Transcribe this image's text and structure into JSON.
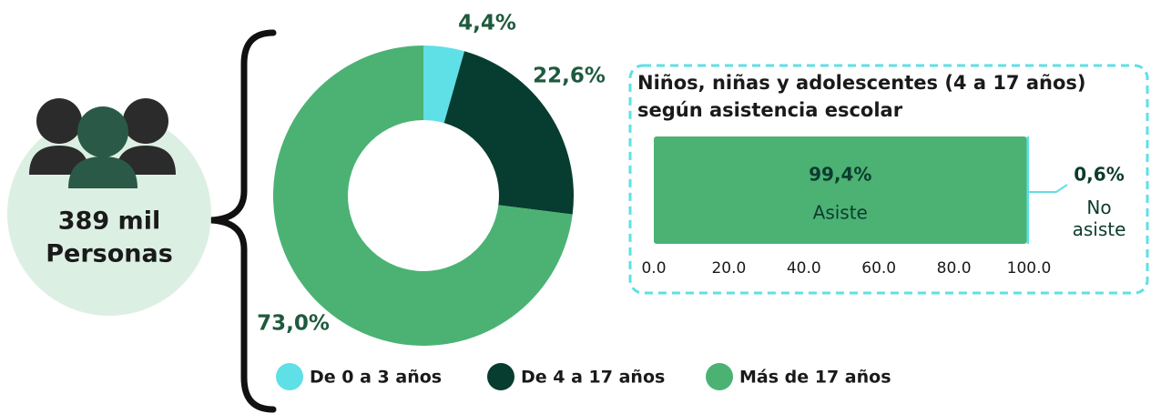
{
  "summary": {
    "value_text": "389 mil",
    "label": "Personas"
  },
  "chart_data": [
    {
      "type": "pie",
      "categories": [
        "De 0 a 3 años",
        "De 4 a 17 años",
        "Más de 17 años"
      ],
      "values": [
        4.4,
        22.6,
        73.0
      ],
      "value_labels": [
        "4,4%",
        "22,6%",
        "73,0%"
      ],
      "colors": [
        "#5ee0e6",
        "#073d30",
        "#4bb274"
      ]
    },
    {
      "type": "bar",
      "title": "Niños, niñas y adolescentes (4 a 17 años) según asistencia escolar",
      "orientation": "horizontal",
      "stacked": true,
      "series": [
        {
          "name": "Asiste",
          "color": "#4bb274",
          "values": [
            99.4
          ],
          "value_labels": [
            "99,4%"
          ]
        },
        {
          "name": "No asiste",
          "color": "#5ee0e6",
          "values": [
            0.6
          ],
          "value_labels": [
            "0,6%"
          ]
        }
      ],
      "xlim": [
        0,
        100
      ],
      "xticks": [
        {
          "value": 0,
          "label": "0.0"
        },
        {
          "value": 20,
          "label": "20.0"
        },
        {
          "value": 40,
          "label": "40.0"
        },
        {
          "value": 60,
          "label": "60.0"
        },
        {
          "value": 80,
          "label": "80.0"
        },
        {
          "value": 100,
          "label": "100.0"
        }
      ]
    }
  ]
}
